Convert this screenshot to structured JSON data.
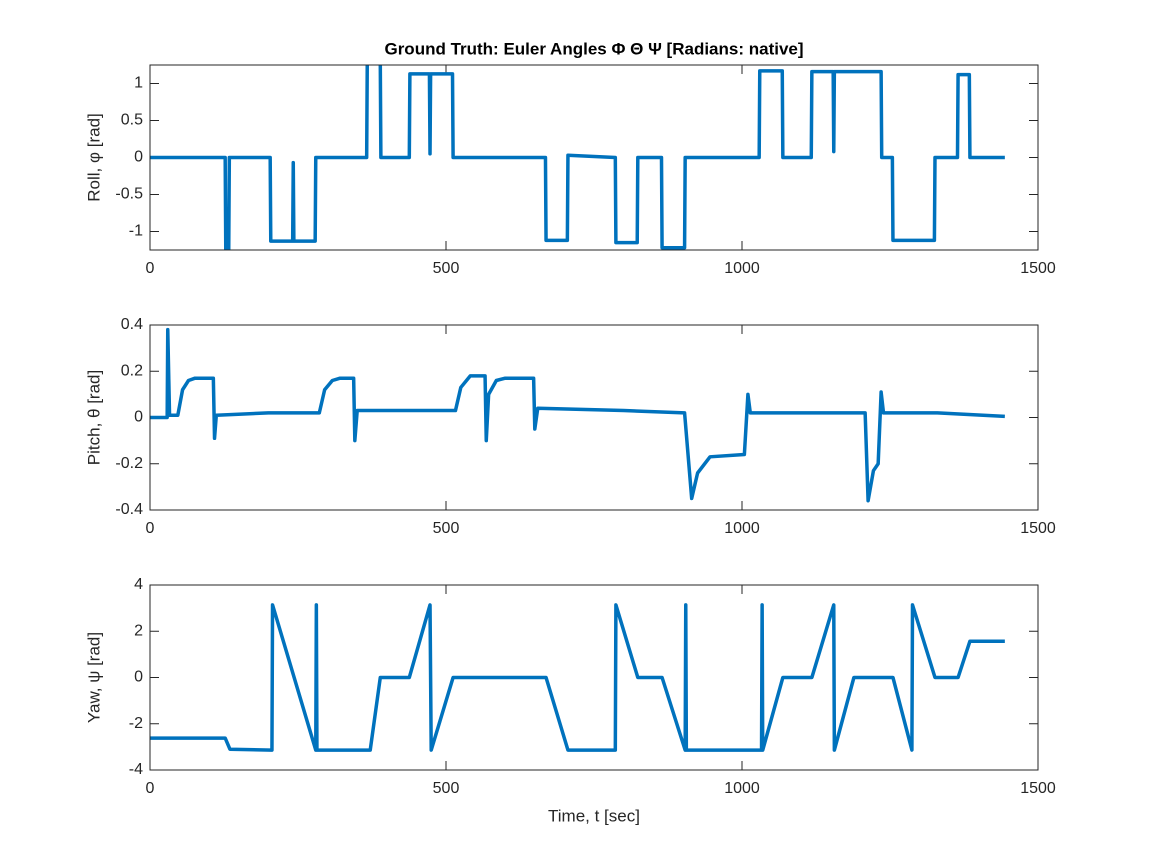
{
  "chart_data": [
    {
      "type": "line",
      "title": "Ground Truth: Euler Angles Φ Θ Ψ [Radians: native]",
      "ylabel": "Roll, φ [rad]",
      "xlim": [
        0,
        1500
      ],
      "xticks": [
        0,
        500,
        1000,
        1500
      ],
      "ylim": [
        -1.25,
        1.25
      ],
      "yticks": [
        -1,
        -0.5,
        0,
        0.5,
        1
      ],
      "grid": false,
      "series": [
        {
          "color": "#0072bd",
          "x": [
            0,
            127,
            128,
            133,
            134,
            203,
            204,
            241,
            242,
            243,
            279,
            280,
            366,
            367,
            389,
            390,
            438,
            439,
            472,
            473,
            474,
            511,
            512,
            668,
            669,
            705,
            706,
            786,
            787,
            823,
            824,
            864,
            865,
            903,
            904,
            1029,
            1030,
            1068,
            1069,
            1117,
            1118,
            1154,
            1155,
            1156,
            1235,
            1236,
            1254,
            1255,
            1325,
            1326,
            1364,
            1365,
            1384,
            1385,
            1444
          ],
          "values": [
            0,
            0,
            -1.25,
            -1.25,
            0,
            0,
            -1.13,
            -1.13,
            -0.07,
            -1.13,
            -1.13,
            0,
            0,
            1.28,
            1.28,
            0,
            0,
            1.13,
            1.13,
            0.05,
            1.13,
            1.13,
            0,
            0,
            -1.12,
            -1.12,
            0.03,
            0,
            -1.15,
            -1.15,
            0,
            0,
            -1.22,
            -1.22,
            0,
            0,
            1.17,
            1.17,
            0,
            0,
            1.16,
            1.16,
            0.08,
            1.16,
            1.16,
            0,
            0,
            -1.12,
            -1.12,
            0,
            0,
            1.12,
            1.12,
            0,
            0
          ]
        }
      ]
    },
    {
      "type": "line",
      "ylabel": "Pitch, θ [rad]",
      "xlim": [
        0,
        1500
      ],
      "xticks": [
        0,
        500,
        1000,
        1500
      ],
      "ylim": [
        -0.4,
        0.4
      ],
      "yticks": [
        -0.4,
        -0.2,
        0,
        0.2,
        0.4
      ],
      "grid": false,
      "series": [
        {
          "color": "#0072bd",
          "x": [
            0,
            29,
            30,
            33,
            47,
            55,
            65,
            76,
            107,
            109,
            112,
            200,
            286,
            295,
            308,
            321,
            344,
            346,
            350,
            516,
            525,
            541,
            566,
            568,
            572,
            585,
            600,
            648,
            650,
            655,
            800,
            903,
            915,
            925,
            946,
            1004,
            1010,
            1014,
            1208,
            1213,
            1222,
            1230,
            1235,
            1239,
            1330,
            1444
          ],
          "values": [
            0,
            0,
            0.38,
            0.01,
            0.01,
            0.12,
            0.16,
            0.17,
            0.17,
            -0.09,
            0.01,
            0.02,
            0.02,
            0.12,
            0.16,
            0.17,
            0.17,
            -0.1,
            0.03,
            0.03,
            0.13,
            0.18,
            0.18,
            -0.1,
            0.1,
            0.16,
            0.17,
            0.17,
            -0.05,
            0.04,
            0.03,
            0.02,
            -0.35,
            -0.24,
            -0.17,
            -0.16,
            0.1,
            0.02,
            0.02,
            -0.36,
            -0.23,
            -0.2,
            0.11,
            0.02,
            0.02,
            0.005
          ]
        }
      ]
    },
    {
      "type": "line",
      "ylabel": "Yaw, ψ [rad]",
      "xlabel": "Time, t [sec]",
      "xlim": [
        0,
        1500
      ],
      "xticks": [
        0,
        500,
        1000,
        1500
      ],
      "ylim": [
        -4,
        4
      ],
      "yticks": [
        -4,
        -2,
        0,
        2,
        4
      ],
      "grid": false,
      "series": [
        {
          "color": "#0072bd",
          "x": [
            0,
            127,
            135,
            206,
            207,
            280,
            281,
            282,
            372,
            389,
            438,
            473,
            475,
            512,
            669,
            706,
            786,
            787,
            824,
            865,
            904,
            905,
            906,
            1033,
            1034,
            1035,
            1069,
            1118,
            1155,
            1156,
            1189,
            1255,
            1287,
            1288,
            1326,
            1365,
            1385,
            1444
          ],
          "values": [
            -2.62,
            -2.62,
            -3.1,
            -3.14,
            3.14,
            -3.14,
            3.14,
            -3.14,
            -3.14,
            0,
            0,
            3.14,
            -3.14,
            0,
            0,
            -3.14,
            -3.14,
            3.14,
            0,
            0,
            -3.14,
            3.14,
            -3.14,
            -3.14,
            3.14,
            -3.14,
            0,
            0,
            3.14,
            -3.14,
            0,
            0,
            -3.14,
            3.14,
            0,
            0,
            1.57,
            1.57
          ]
        }
      ]
    }
  ]
}
